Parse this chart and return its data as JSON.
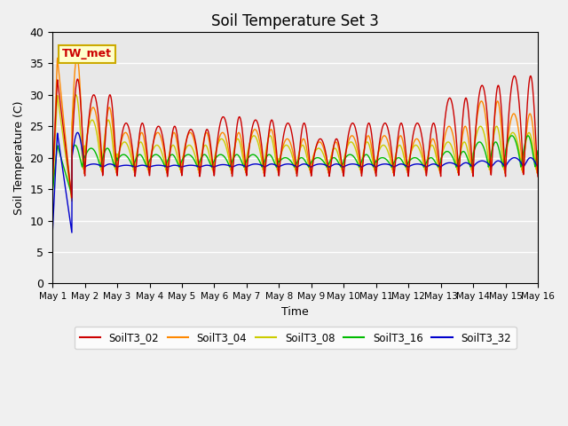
{
  "title": "Soil Temperature Set 3",
  "xlabel": "Time",
  "ylabel": "Soil Temperature (C)",
  "ylim": [
    0,
    40
  ],
  "yticks": [
    0,
    5,
    10,
    15,
    20,
    25,
    30,
    35,
    40
  ],
  "series_names": [
    "SoilT3_02",
    "SoilT3_04",
    "SoilT3_08",
    "SoilT3_16",
    "SoilT3_32"
  ],
  "series_colors": [
    "#cc0000",
    "#ff8800",
    "#cccc00",
    "#00bb00",
    "#0000cc"
  ],
  "annotation_text": "TW_met",
  "background_color": "#e8e8e8",
  "n_days": 15,
  "n_pts_per_day": 144
}
